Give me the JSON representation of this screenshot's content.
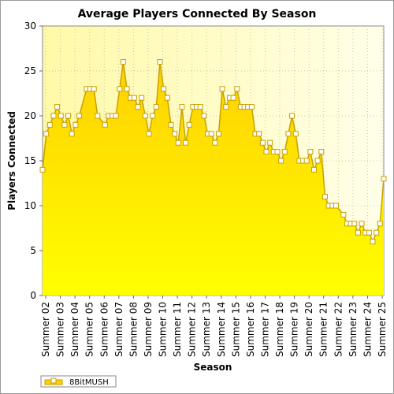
{
  "chart_data": {
    "type": "area",
    "title": "Average Players Connected By Season",
    "xlabel": "Season",
    "ylabel": "Players Connected",
    "ylim": [
      0,
      30
    ],
    "yticks": [
      0,
      5,
      10,
      15,
      20,
      25,
      30
    ],
    "x_tick_labels": [
      "Summer 02",
      "Summer 03",
      "Summer 04",
      "Summer 05",
      "Summer 06",
      "Summer 07",
      "Summer 08",
      "Summer 09",
      "Summer 10",
      "Summer 11",
      "Summer 12",
      "Summer 13",
      "Summer 14",
      "Summer 15",
      "Summer 16",
      "Summer 17",
      "Summer 18",
      "Summer 19",
      "Summer 20",
      "Summer 21",
      "Summer 22",
      "Summer 23",
      "Summer 24",
      "Summer 25"
    ],
    "x_range": [
      0,
      93
    ],
    "grid": true,
    "legend": "bottom-left",
    "series": [
      {
        "name": "8BitMUSH",
        "values": [
          14,
          18,
          19,
          20,
          21,
          20,
          19,
          20,
          18,
          19,
          20,
          23,
          23,
          23,
          20,
          19,
          20,
          20,
          20,
          23,
          26,
          23,
          22,
          22,
          21,
          22,
          20,
          18,
          20,
          21,
          26,
          23,
          22,
          19,
          18,
          17,
          21,
          17,
          19,
          21,
          21,
          21,
          20,
          18,
          18,
          17,
          18,
          23,
          21,
          22,
          22,
          23,
          21,
          21,
          21,
          21,
          18,
          18,
          17,
          16,
          17,
          16,
          16,
          15,
          16,
          18,
          20,
          18,
          15,
          15,
          15,
          16,
          14,
          15,
          16,
          11,
          10,
          10,
          10,
          9,
          8,
          8,
          8,
          7,
          8,
          7,
          7,
          6,
          7,
          8,
          13
        ],
        "x": [
          0,
          1,
          2,
          3,
          4,
          5,
          6,
          7,
          8,
          9,
          10,
          12,
          13,
          14,
          15,
          17,
          18,
          19,
          20,
          21,
          22,
          23,
          24,
          25,
          26,
          27,
          28,
          29,
          30,
          31,
          32,
          33,
          34,
          35,
          36,
          37,
          38,
          39,
          40,
          41,
          42,
          43,
          44,
          45,
          46,
          47,
          48,
          49,
          50,
          51,
          52,
          53,
          54,
          55,
          56,
          57,
          58,
          59,
          60,
          61,
          62,
          63,
          64,
          65,
          66,
          67,
          68,
          69,
          70,
          71,
          72,
          73,
          74,
          75,
          76,
          77,
          78,
          79,
          80,
          82,
          83,
          84,
          85,
          86,
          87,
          88,
          89,
          90,
          91,
          92,
          93
        ]
      }
    ],
    "colors": {
      "area_top": "#ffd000",
      "area_bottom": "#ffff00",
      "line": "#c8a000",
      "marker_fill": "#ffffff",
      "plot_bg": "#ffffd8"
    }
  }
}
